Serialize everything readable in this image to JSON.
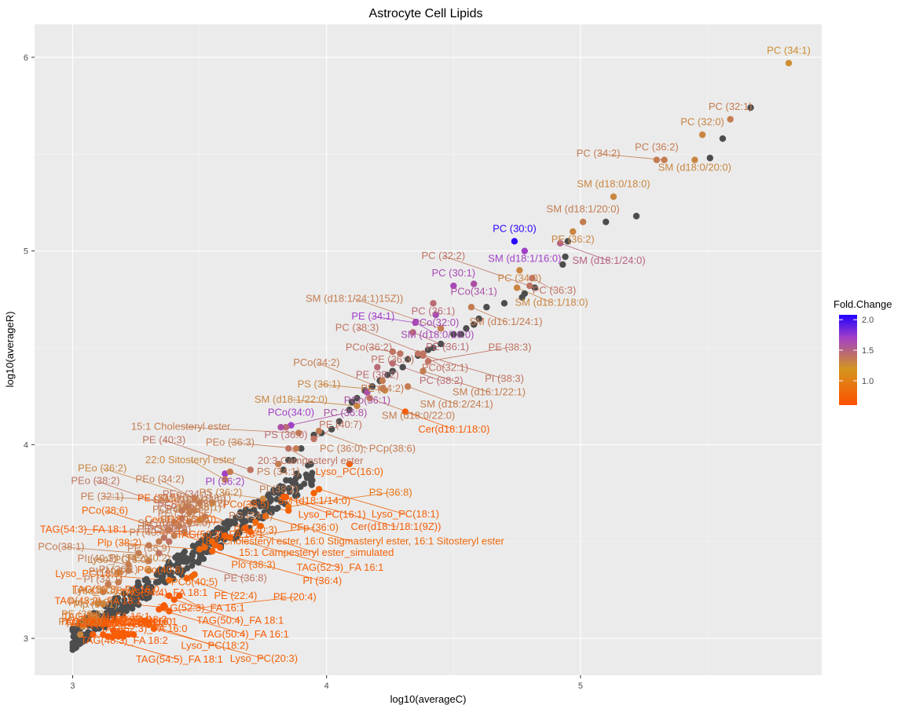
{
  "chart_data": {
    "type": "scatter",
    "title": "Astrocyte Cell Lipids",
    "xlabel": "log10(averageC)",
    "ylabel": "log10(averageR)",
    "xlim": [
      2.85,
      5.95
    ],
    "ylim": [
      2.81,
      6.17
    ],
    "xticks": [
      "3",
      "4",
      "5"
    ],
    "yticks": [
      "3",
      "4",
      "5",
      "6"
    ],
    "grid": true,
    "legend": {
      "title": "Fold.Change",
      "placement": "right",
      "ticks": [
        "1.0",
        "1.5",
        "2.0"
      ],
      "range": [
        0.6,
        2.08
      ],
      "colors": [
        "#ff5000",
        "#d3961e",
        "#a13fc7",
        "#1f00ff"
      ]
    },
    "neutral_color": "#4d4d4d",
    "grey_points": [
      [
        5.67,
        5.74
      ],
      [
        5.56,
        5.58
      ],
      [
        5.51,
        5.48
      ],
      [
        5.22,
        5.18
      ],
      [
        5.1,
        5.15
      ],
      [
        4.95,
        5.05
      ],
      [
        4.94,
        4.97
      ],
      [
        4.93,
        4.93
      ],
      [
        4.82,
        4.81
      ],
      [
        4.78,
        4.78
      ],
      [
        4.77,
        4.76
      ],
      [
        4.7,
        4.73
      ],
      [
        4.63,
        4.71
      ],
      [
        4.6,
        4.65
      ],
      [
        4.58,
        4.62
      ],
      [
        4.55,
        4.6
      ],
      [
        4.53,
        4.57
      ],
      [
        4.5,
        4.57
      ],
      [
        4.45,
        4.52
      ],
      [
        4.42,
        4.5
      ],
      [
        4.4,
        4.49
      ],
      [
        4.36,
        4.46
      ],
      [
        4.32,
        4.44
      ],
      [
        4.3,
        4.4
      ],
      [
        4.26,
        4.38
      ],
      [
        4.24,
        4.36
      ],
      [
        4.21,
        4.33
      ],
      [
        4.18,
        4.3
      ],
      [
        4.15,
        4.28
      ],
      [
        4.12,
        4.24
      ],
      [
        4.1,
        4.22
      ],
      [
        4.09,
        4.18
      ],
      [
        4.05,
        4.12
      ],
      [
        4.02,
        4.08
      ],
      [
        3.98,
        4.06
      ],
      [
        3.95,
        4.05
      ],
      [
        3.9,
        3.98
      ],
      [
        3.87,
        3.92
      ],
      [
        3.85,
        3.92
      ],
      [
        3.83,
        3.87
      ]
    ],
    "grey_cloud": {
      "x_range": [
        3.0,
        3.95
      ],
      "count": 380
    },
    "labeled_points": [
      {
        "label": "PC (34:1)",
        "x": 5.82,
        "y": 5.97,
        "fc": 1.25
      },
      {
        "label": "PC (32:1)",
        "x": 5.59,
        "y": 5.68,
        "fc": 1.35
      },
      {
        "label": "PC (32:0)",
        "x": 5.48,
        "y": 5.6,
        "fc": 1.3
      },
      {
        "label": "PC (36:2)",
        "x": 5.3,
        "y": 5.47,
        "fc": 1.35
      },
      {
        "label": "SM (d18:0/20:0)",
        "x": 5.45,
        "y": 5.47,
        "fc": 1.3
      },
      {
        "label": "PC (34:2)",
        "x": 5.33,
        "y": 5.47,
        "fc": 1.35
      },
      {
        "label": "SM (d18:0/18:0)",
        "x": 5.13,
        "y": 5.28,
        "fc": 1.3
      },
      {
        "label": "SM (d18:1/20:0)",
        "x": 5.01,
        "y": 5.15,
        "fc": 1.35
      },
      {
        "label": "PE (36:2)",
        "x": 4.97,
        "y": 5.1,
        "fc": 1.3
      },
      {
        "label": "PC (30:0)",
        "x": 4.74,
        "y": 5.05,
        "fc": 2.05
      },
      {
        "label": "SM (d18:1/16:0)",
        "x": 4.78,
        "y": 5.0,
        "fc": 1.7
      },
      {
        "label": "SM (d18:1/24:0)",
        "x": 4.92,
        "y": 5.04,
        "fc": 1.5
      },
      {
        "label": "PC (34:0)",
        "x": 4.76,
        "y": 4.9,
        "fc": 1.3
      },
      {
        "label": "PC (36:3)",
        "x": 4.81,
        "y": 4.86,
        "fc": 1.4
      },
      {
        "label": "PC (30:1)",
        "x": 4.5,
        "y": 4.82,
        "fc": 1.65
      },
      {
        "label": "PCo(34:1)",
        "x": 4.58,
        "y": 4.83,
        "fc": 1.6
      },
      {
        "label": "SM (d18:1/18:0)",
        "x": 4.75,
        "y": 4.81,
        "fc": 1.3
      },
      {
        "label": "PC (32:2)",
        "x": 4.8,
        "y": 4.82,
        "fc": 1.4
      },
      {
        "label": "PCo(32:0)",
        "x": 4.43,
        "y": 4.67,
        "fc": 1.65
      },
      {
        "label": "PC (36:1)",
        "x": 4.42,
        "y": 4.73,
        "fc": 1.45
      },
      {
        "label": "SM (d16:1/24:1)",
        "x": 4.57,
        "y": 4.71,
        "fc": 1.35
      },
      {
        "label": "PE (34:1)",
        "x": 4.35,
        "y": 4.63,
        "fc": 1.7
      },
      {
        "label": "SM (d18:0/16:0)",
        "x": 4.35,
        "y": 4.63,
        "fc": 1.65
      },
      {
        "label": "PE (36:1)",
        "x": 4.34,
        "y": 4.58,
        "fc": 1.45
      },
      {
        "label": "SM (d18:1/24:1)15Z))",
        "x": 4.45,
        "y": 4.6,
        "fc": 1.35
      },
      {
        "label": "PE (36:3)",
        "x": 4.26,
        "y": 4.48,
        "fc": 1.4
      },
      {
        "label": "PCo(36:2)",
        "x": 4.29,
        "y": 4.47,
        "fc": 1.4
      },
      {
        "label": "PCo(32:1)",
        "x": 4.38,
        "y": 4.46,
        "fc": 1.4
      },
      {
        "label": "PC (38:3)",
        "x": 4.38,
        "y": 4.47,
        "fc": 1.4
      },
      {
        "label": "PI (38:3)",
        "x": 4.36,
        "y": 4.47,
        "fc": 1.4
      },
      {
        "label": "PE (38:2)",
        "x": 4.2,
        "y": 4.4,
        "fc": 1.45
      },
      {
        "label": "PC (38:2)",
        "x": 4.26,
        "y": 4.42,
        "fc": 1.45
      },
      {
        "label": "SM (d16:1/22:1)",
        "x": 4.38,
        "y": 4.38,
        "fc": 1.35
      },
      {
        "label": "PE (38:3)",
        "x": 4.4,
        "y": 4.43,
        "fc": 1.4
      },
      {
        "label": "PE (34:2)",
        "x": 4.22,
        "y": 4.33,
        "fc": 1.35
      },
      {
        "label": "SM (d18:2/24:1)",
        "x": 4.32,
        "y": 4.3,
        "fc": 1.35
      },
      {
        "label": "PCo(36:1)",
        "x": 4.16,
        "y": 4.27,
        "fc": 1.6
      },
      {
        "label": "PS (36:1)",
        "x": 4.23,
        "y": 4.28,
        "fc": 1.3
      },
      {
        "label": "PCo(34:2)",
        "x": 4.22,
        "y": 4.29,
        "fc": 1.35
      },
      {
        "label": "SM (d18:0/22:0)",
        "x": 4.17,
        "y": 4.24,
        "fc": 1.35
      },
      {
        "label": "SM (d18:1/22:0)",
        "x": 4.12,
        "y": 4.2,
        "fc": 1.3
      },
      {
        "label": "Cer(d18:1/18:0)",
        "x": 4.31,
        "y": 4.17,
        "fc": 0.7
      },
      {
        "label": "PCo(34:0)",
        "x": 3.86,
        "y": 4.1,
        "fc": 1.7
      },
      {
        "label": "PS (36:0)",
        "x": 3.84,
        "y": 4.09,
        "fc": 1.45
      },
      {
        "label": "PC (36:0); PCp(38:6)",
        "x": 3.97,
        "y": 4.07,
        "fc": 1.35
      },
      {
        "label": "15:1 Cholesteryl ester",
        "x": 3.89,
        "y": 4.06,
        "fc": 1.35
      },
      {
        "label": "PE (40:7)",
        "x": 3.95,
        "y": 4.03,
        "fc": 1.4
      },
      {
        "label": "20:3 Campesteryl ester",
        "x": 3.85,
        "y": 3.98,
        "fc": 1.4
      },
      {
        "label": "PEo (36:3)",
        "x": 3.88,
        "y": 3.98,
        "fc": 1.35
      },
      {
        "label": "PC (36:8)",
        "x": 3.82,
        "y": 4.09,
        "fc": 1.6
      },
      {
        "label": "PI (36:2)",
        "x": 3.6,
        "y": 3.85,
        "fc": 1.7
      },
      {
        "label": "22:0 Sitosteryl ester",
        "x": 3.6,
        "y": 3.82,
        "fc": 1.3
      },
      {
        "label": "PI (38:2)",
        "x": 3.62,
        "y": 3.86,
        "fc": 1.35
      },
      {
        "label": "PE (40:3)",
        "x": 3.7,
        "y": 3.87,
        "fc": 1.4
      },
      {
        "label": "Lyso_PC(16:0)",
        "x": 4.09,
        "y": 3.9,
        "fc": 0.75
      },
      {
        "label": "PS (34:1)",
        "x": 3.81,
        "y": 3.9,
        "fc": 1.35
      },
      {
        "label": "SM (d18:1/14:0)",
        "x": 3.95,
        "y": 3.75,
        "fc": 0.75
      },
      {
        "label": "Lyso_PC(18:1)",
        "x": 3.97,
        "y": 3.77,
        "fc": 0.75
      },
      {
        "label": "PS (36:2)",
        "x": 3.75,
        "y": 3.72,
        "fc": 1.3
      },
      {
        "label": "Cer(d18:1/18:1(9Z))",
        "x": 3.84,
        "y": 3.73,
        "fc": 0.7
      },
      {
        "label": "Lyso_PC(16:1)",
        "x": 3.83,
        "y": 3.73,
        "fc": 0.7
      },
      {
        "label": "PS (36:8)",
        "x": 3.85,
        "y": 3.68,
        "fc": 0.9
      },
      {
        "label": "PCo(38:5)",
        "x": 3.85,
        "y": 3.66,
        "fc": 0.75
      },
      {
        "label": "18:1 Cholesteryl ester, 16:0 Stigmasteryl ester, 16:1 Sitosteryl ester",
        "x": 3.76,
        "y": 3.63,
        "fc": 0.8
      },
      {
        "label": "PC (40:3)",
        "x": 3.72,
        "y": 3.6,
        "fc": 0.8
      },
      {
        "label": "Cer(d18:1/20:0)",
        "x": 3.74,
        "y": 3.58,
        "fc": 0.75
      },
      {
        "label": "PE (20:1)",
        "x": 3.68,
        "y": 3.57,
        "fc": 0.7
      },
      {
        "label": "15:1 Campesteryl ester_simulated",
        "x": 3.7,
        "y": 3.55,
        "fc": 0.75
      },
      {
        "label": "TAG(52:3)_FA 16:1",
        "x": 3.62,
        "y": 3.52,
        "fc": 0.75
      },
      {
        "label": "TAG(54:3)_FA 18:1",
        "x": 3.6,
        "y": 3.53,
        "fc": 0.7
      },
      {
        "label": "PFp (36:0)",
        "x": 3.55,
        "y": 3.5,
        "fc": 0.8
      },
      {
        "label": "PCo(38:6)",
        "x": 3.56,
        "y": 3.48,
        "fc": 0.75
      },
      {
        "label": "Plo (38:3)",
        "x": 3.52,
        "y": 3.47,
        "fc": 0.8
      },
      {
        "label": "Plp (38:2)",
        "x": 3.5,
        "y": 3.46,
        "fc": 0.8
      },
      {
        "label": "PI (36:4)",
        "x": 3.55,
        "y": 3.45,
        "fc": 0.75
      },
      {
        "label": "TAG(50:3)_FA 18:1",
        "x": 3.58,
        "y": 3.47,
        "fc": 0.7
      },
      {
        "label": "PE (40:2)",
        "x": 3.3,
        "y": 3.35,
        "fc": 1.3
      },
      {
        "label": "PCo(40:5)",
        "x": 3.48,
        "y": 3.33,
        "fc": 0.8
      },
      {
        "label": "PCo(40:6)",
        "x": 3.47,
        "y": 3.32,
        "fc": 0.8
      },
      {
        "label": "PE (22:4)",
        "x": 3.45,
        "y": 3.31,
        "fc": 0.75
      },
      {
        "label": "Lyso_PC(18:0)",
        "x": 3.38,
        "y": 3.3,
        "fc": 0.8
      },
      {
        "label": "TAG(52:3)_FA 16:1",
        "x": 3.42,
        "y": 3.22,
        "fc": 0.7
      },
      {
        "label": "TAG(50:3)_FA 16:0",
        "x": 3.38,
        "y": 3.22,
        "fc": 0.7
      },
      {
        "label": "TAG(50:4)_FA 18:1",
        "x": 3.4,
        "y": 3.2,
        "fc": 0.7
      },
      {
        "label": "TAG(48:2)_FA 18:1",
        "x": 3.36,
        "y": 3.16,
        "fc": 0.7
      },
      {
        "label": "TAG(50:4)_FA 16:1",
        "x": 3.34,
        "y": 3.15,
        "fc": 0.7
      },
      {
        "label": "TAG(54:4)_FA 18:1",
        "x": 3.36,
        "y": 3.17,
        "fc": 0.7
      },
      {
        "label": "PE (20:4)",
        "x": 3.38,
        "y": 3.14,
        "fc": 0.75
      },
      {
        "label": "TAG(52:4)_FA 16:1",
        "x": 3.3,
        "y": 3.08,
        "fc": 0.7
      },
      {
        "label": "TAG(52:3)_FA 16:0",
        "x": 3.28,
        "y": 3.09,
        "fc": 0.7
      },
      {
        "label": "Lyso_PC(18:2)",
        "x": 3.3,
        "y": 3.07,
        "fc": 0.75
      },
      {
        "label": "Lyso_PC(20:3)",
        "x": 3.32,
        "y": 3.05,
        "fc": 0.75
      },
      {
        "label": "TAG(48:3)_FA 18:2",
        "x": 3.16,
        "y": 3.04,
        "fc": 0.7
      },
      {
        "label": "Lyso_PC(22:4)",
        "x": 3.18,
        "y": 3.03,
        "fc": 0.75
      },
      {
        "label": "TAG(52:4)_FA 18:2",
        "x": 3.2,
        "y": 3.03,
        "fc": 0.7
      },
      {
        "label": "TAG(48:2)_FA 16:0",
        "x": 3.22,
        "y": 3.02,
        "fc": 0.7
      },
      {
        "label": "TAG(48:2)_FA 16:1",
        "x": 3.24,
        "y": 3.02,
        "fc": 0.7
      },
      {
        "label": "TAG(54:5)_FA 18:1",
        "x": 3.08,
        "y": 3.02,
        "fc": 0.7
      },
      {
        "label": "TAG(54:6)_FA 20:4",
        "x": 3.12,
        "y": 3.02,
        "fc": 0.7
      },
      {
        "label": "TAG(48:3)_FA 18:1",
        "x": 3.14,
        "y": 3.01,
        "fc": 0.7
      },
      {
        "label": "TAG(48:3)_FA 16:1",
        "x": 3.16,
        "y": 3.01,
        "fc": 0.7
      },
      {
        "label": "TAG(52:4)_FA 18:1",
        "x": 3.18,
        "y": 3.01,
        "fc": 0.7
      },
      {
        "label": "TAG(54:4)_FA 18:2",
        "x": 3.2,
        "y": 3.01,
        "fc": 0.7
      },
      {
        "label": "PEo (34:2)",
        "x": 3.48,
        "y": 3.72,
        "fc": 1.35
      },
      {
        "label": "PEo (38:2)",
        "x": 3.43,
        "y": 3.66,
        "fc": 1.4
      },
      {
        "label": "PEo (34:1)",
        "x": 3.45,
        "y": 3.68,
        "fc": 1.4
      },
      {
        "label": "PE (32:1)",
        "x": 3.5,
        "y": 3.7,
        "fc": 1.35
      },
      {
        "label": "SM (d18:0/24:0)",
        "x": 3.46,
        "y": 3.65,
        "fc": 1.35
      },
      {
        "label": "SM (d16:1/18:1)",
        "x": 3.48,
        "y": 3.66,
        "fc": 1.35
      },
      {
        "label": "PEo (36:2)",
        "x": 3.55,
        "y": 3.7,
        "fc": 1.3
      },
      {
        "label": "PC (40:2)",
        "x": 3.4,
        "y": 3.6,
        "fc": 1.35
      },
      {
        "label": "PEo (36:1)",
        "x": 3.43,
        "y": 3.62,
        "fc": 1.4
      },
      {
        "label": "PC (30:2)",
        "x": 3.52,
        "y": 3.63,
        "fc": 1.35
      },
      {
        "label": "PG (34:1)",
        "x": 3.38,
        "y": 3.56,
        "fc": 1.35
      },
      {
        "label": "PE (32:2)",
        "x": 3.42,
        "y": 3.58,
        "fc": 1.35
      },
      {
        "label": "PCo(38:2)",
        "x": 3.46,
        "y": 3.6,
        "fc": 1.35
      },
      {
        "label": "PC (38:1)",
        "x": 3.5,
        "y": 3.61,
        "fc": 1.3
      },
      {
        "label": "PC (36:7)",
        "x": 3.36,
        "y": 3.52,
        "fc": 1.4
      },
      {
        "label": "SM (d18:0/14:0)",
        "x": 3.4,
        "y": 3.53,
        "fc": 1.35
      },
      {
        "label": "PEo (38:3)",
        "x": 3.44,
        "y": 3.55,
        "fc": 1.35
      },
      {
        "label": "PI (40:4)",
        "x": 3.3,
        "y": 3.48,
        "fc": 1.35
      },
      {
        "label": "PE (32:0)",
        "x": 3.34,
        "y": 3.5,
        "fc": 1.35
      },
      {
        "label": "PC (38:9)",
        "x": 3.38,
        "y": 3.5,
        "fc": 1.4
      },
      {
        "label": "PCo(38:1)",
        "x": 3.26,
        "y": 3.44,
        "fc": 1.35
      },
      {
        "label": "PE (36:8)",
        "x": 3.34,
        "y": 3.44,
        "fc": 1.4
      },
      {
        "label": "PI (40:3)",
        "x": 3.22,
        "y": 3.38,
        "fc": 1.35
      },
      {
        "label": "PE (38:9)",
        "x": 3.3,
        "y": 3.4,
        "fc": 1.35
      },
      {
        "label": "Lyso_PC(6:0)",
        "x": 3.18,
        "y": 3.34,
        "fc": 1.3
      },
      {
        "label": "PI (34:2)",
        "x": 3.22,
        "y": 3.35,
        "fc": 1.35
      },
      {
        "label": "PI (40:5)",
        "x": 3.14,
        "y": 3.28,
        "fc": 1.35
      },
      {
        "label": "PI (36:1)",
        "x": 3.18,
        "y": 3.29,
        "fc": 1.35
      },
      {
        "label": "PI (34:1)",
        "x": 3.12,
        "y": 3.24,
        "fc": 1.35
      },
      {
        "label": "PI (38:1)",
        "x": 3.1,
        "y": 3.18,
        "fc": 1.3
      },
      {
        "label": "Lyso_PC(3:0)",
        "x": 3.12,
        "y": 3.18,
        "fc": 1.3
      },
      {
        "label": "Plo (38:2)",
        "x": 3.07,
        "y": 3.12,
        "fc": 1.3
      },
      {
        "label": "Plp (38:1)",
        "x": 3.09,
        "y": 3.11,
        "fc": 1.3
      },
      {
        "label": "PE (38:8)",
        "x": 3.04,
        "y": 3.06,
        "fc": 1.3
      },
      {
        "label": "PC (40:3)",
        "x": 3.03,
        "y": 3.02,
        "fc": 1.3
      }
    ]
  }
}
